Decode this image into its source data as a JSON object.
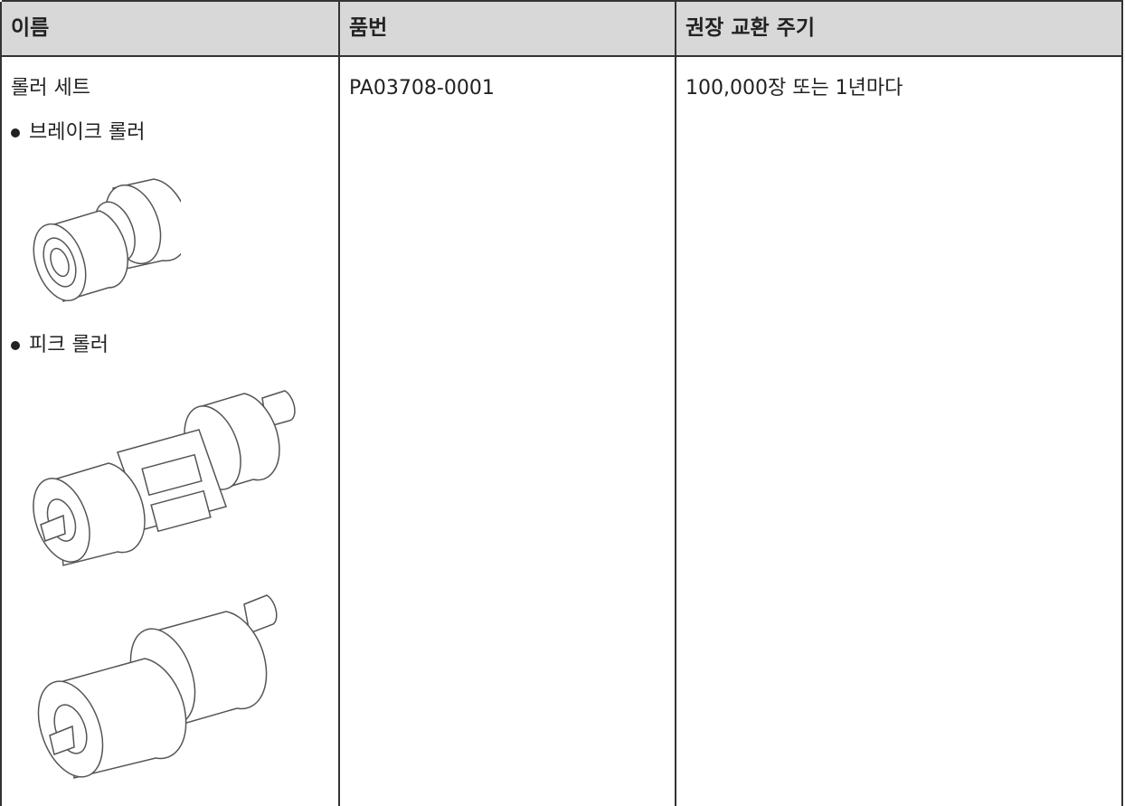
{
  "table": {
    "header": [
      "이름",
      "품번",
      "권장 교환 주기"
    ],
    "rows": [
      {
        "name": "롤러 세트",
        "items": [
          "브레이크 롤러",
          "피크 롤러"
        ],
        "part_number": "PA03708-0001",
        "cycle": "100,000장 또는 1년마다"
      }
    ]
  }
}
